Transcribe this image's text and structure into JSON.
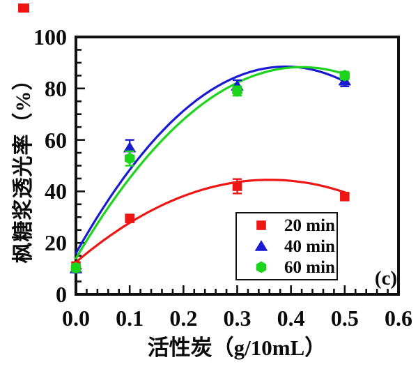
{
  "figure": {
    "panel_label": "(c)",
    "background": "#ffffff",
    "axis_color": "#111111",
    "stray_square_color": "#ee1515"
  },
  "chart_data": {
    "type": "scatter",
    "title": "",
    "xlabel": "活性炭（g/10mL）",
    "ylabel": "枫糖浆透光率（%）",
    "xlim": [
      0,
      0.6
    ],
    "ylim": [
      0,
      100
    ],
    "x_major_ticks": [
      "0.0",
      "0.1",
      "0.2",
      "0.3",
      "0.4",
      "0.5",
      "0.6"
    ],
    "y_major_ticks": [
      "0",
      "20",
      "40",
      "60",
      "80",
      "100"
    ],
    "x_minor_step": 0.02,
    "y_minor_step": 5,
    "grid": "off",
    "legend_position": "inside lower-right",
    "error_bars": true,
    "series": [
      {
        "name": "20 min",
        "marker": "square",
        "color": "#ee1515",
        "x": [
          0,
          0.1,
          0.3,
          0.5
        ],
        "y": [
          11,
          29.5,
          42,
          38
        ],
        "yerr": [
          1.0,
          1.0,
          2.8,
          1.5
        ],
        "fit_curve": {
          "type": "quadratic",
          "a": 12.5,
          "b": 177.8,
          "c": -246.9,
          "x_range": [
            0,
            0.5
          ]
        }
      },
      {
        "name": "40 min",
        "marker": "triangle",
        "color": "#1a1ad2",
        "x": [
          0,
          0.1,
          0.3,
          0.5
        ],
        "y": [
          10,
          57,
          81,
          83
        ],
        "yerr": [
          1.5,
          3.0,
          2.2,
          2.2
        ],
        "fit_curve": {
          "type": "quadratic",
          "a": 16.0,
          "b": 371.8,
          "c": -476.7,
          "x_range": [
            0,
            0.5
          ]
        }
      },
      {
        "name": "60 min",
        "marker": "hexagon",
        "color": "#1bd41b",
        "x": [
          0,
          0.1,
          0.3,
          0.5
        ],
        "y": [
          10.3,
          52.8,
          79,
          85
        ],
        "yerr": [
          1.5,
          2.8,
          1.8,
          1.5
        ],
        "fit_curve": {
          "type": "quadratic",
          "a": 14.0,
          "b": 353.8,
          "c": -421.2,
          "x_range": [
            0,
            0.5
          ]
        }
      }
    ]
  }
}
